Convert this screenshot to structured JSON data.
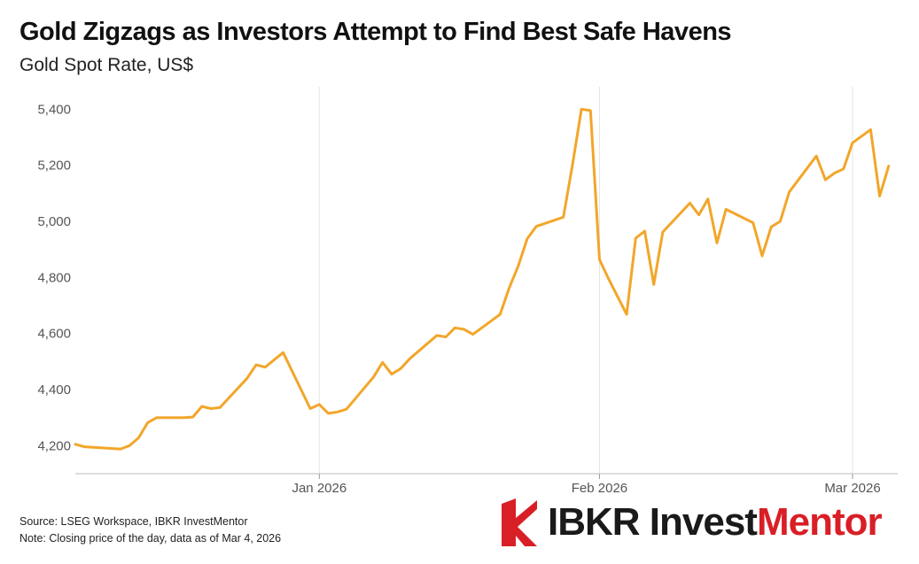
{
  "title": "Gold Zigzags as Investors Attempt to Find Best Safe Havens",
  "subtitle": "Gold Spot Rate, US$",
  "footer": {
    "source": "Source: LSEG Workspace, IBKR InvestMentor",
    "note": "Note: Closing price of the day, data as of Mar 4, 2026"
  },
  "brand": {
    "part1": "IBKR Invest",
    "part2": "Mentor",
    "logo_icon": "ibkr-red-arrow-icon"
  },
  "colors": {
    "line": "#f2a62a",
    "grid": "#e6e6e6",
    "brand_red": "#d91f26"
  },
  "chart_data": {
    "type": "line",
    "title": "Gold Zigzags as Investors Attempt to Find Best Safe Havens",
    "subtitle": "Gold Spot Rate, US$",
    "xlabel": "",
    "ylabel": "",
    "grid": "vertical",
    "legend": "none",
    "ylim": [
      4100,
      5480
    ],
    "xlim": [
      "2025-12-05",
      "2026-03-06"
    ],
    "y_ticks": [
      4200,
      4400,
      4600,
      4800,
      5000,
      5200,
      5400
    ],
    "y_tick_labels": [
      "4,200",
      "4,400",
      "4,600",
      "4,800",
      "5,000",
      "5,200",
      "5,400"
    ],
    "x_ticks": [
      "2026-01-01",
      "2026-02-01",
      "2026-03-01"
    ],
    "x_tick_labels": [
      "Jan 2026",
      "Feb 2026",
      "Mar 2026"
    ],
    "series": [
      {
        "points": [
          [
            "2025-12-05",
            4205
          ],
          [
            "2025-12-06",
            4196
          ],
          [
            "2025-12-09",
            4190
          ],
          [
            "2025-12-10",
            4188
          ],
          [
            "2025-12-11",
            4200
          ],
          [
            "2025-12-12",
            4228
          ],
          [
            "2025-12-13",
            4282
          ],
          [
            "2025-12-14",
            4300
          ],
          [
            "2025-12-17",
            4300
          ],
          [
            "2025-12-18",
            4302
          ],
          [
            "2025-12-19",
            4340
          ],
          [
            "2025-12-20",
            4332
          ],
          [
            "2025-12-21",
            4336
          ],
          [
            "2025-12-24",
            4440
          ],
          [
            "2025-12-25",
            4488
          ],
          [
            "2025-12-26",
            4480
          ],
          [
            "2025-12-28",
            4532
          ],
          [
            "2025-12-31",
            4332
          ],
          [
            "2026-01-01",
            4347
          ],
          [
            "2026-01-02",
            4315
          ],
          [
            "2026-01-03",
            4320
          ],
          [
            "2026-01-04",
            4330
          ],
          [
            "2026-01-07",
            4445
          ],
          [
            "2026-01-08",
            4497
          ],
          [
            "2026-01-09",
            4455
          ],
          [
            "2026-01-10",
            4475
          ],
          [
            "2026-01-11",
            4510
          ],
          [
            "2026-01-14",
            4593
          ],
          [
            "2026-01-15",
            4588
          ],
          [
            "2026-01-16",
            4620
          ],
          [
            "2026-01-17",
            4615
          ],
          [
            "2026-01-18",
            4597
          ],
          [
            "2026-01-21",
            4668
          ],
          [
            "2026-01-22",
            4762
          ],
          [
            "2026-01-23",
            4840
          ],
          [
            "2026-01-24",
            4938
          ],
          [
            "2026-01-25",
            4982
          ],
          [
            "2026-01-28",
            5015
          ],
          [
            "2026-01-29",
            5200
          ],
          [
            "2026-01-30",
            5400
          ],
          [
            "2026-01-31",
            5395
          ],
          [
            "2026-02-01",
            4863
          ],
          [
            "2026-02-02",
            4795
          ],
          [
            "2026-02-04",
            4668
          ],
          [
            "2026-02-05",
            4940
          ],
          [
            "2026-02-06",
            4965
          ],
          [
            "2026-02-07",
            4775
          ],
          [
            "2026-02-08",
            4962
          ],
          [
            "2026-02-11",
            5065
          ],
          [
            "2026-02-12",
            5023
          ],
          [
            "2026-02-13",
            5080
          ],
          [
            "2026-02-14",
            4923
          ],
          [
            "2026-02-15",
            5043
          ],
          [
            "2026-02-18",
            4995
          ],
          [
            "2026-02-19",
            4877
          ],
          [
            "2026-02-20",
            4980
          ],
          [
            "2026-02-21",
            5000
          ],
          [
            "2026-02-22",
            5105
          ],
          [
            "2026-02-25",
            5233
          ],
          [
            "2026-02-26",
            5148
          ],
          [
            "2026-02-27",
            5172
          ],
          [
            "2026-02-28",
            5187
          ],
          [
            "2026-03-01",
            5280
          ],
          [
            "2026-03-03",
            5327
          ],
          [
            "2026-03-04",
            5090
          ],
          [
            "2026-03-05",
            5197
          ]
        ]
      }
    ]
  }
}
